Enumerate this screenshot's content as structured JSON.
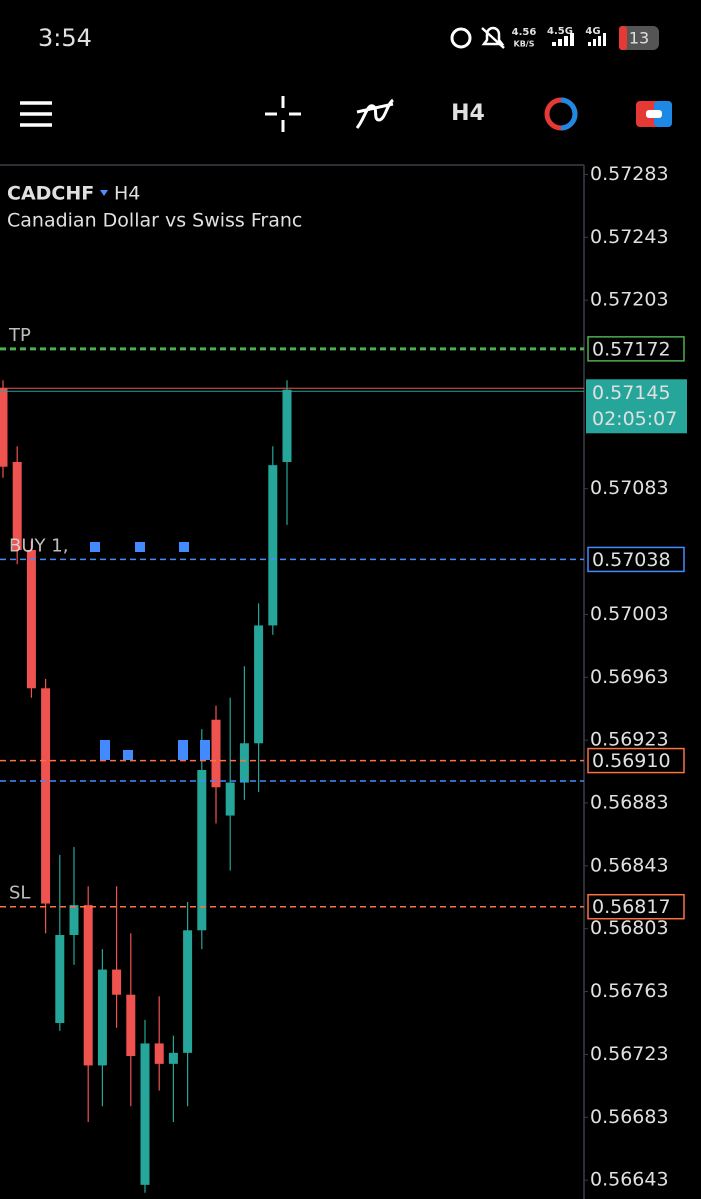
{
  "status_bar": {
    "time": "3:54",
    "speed": "4.56",
    "speed_unit": "KB/S",
    "network_1": "4.5G",
    "network_2": "4G",
    "battery": "13"
  },
  "toolbar": {
    "timeframe": "H4"
  },
  "chart_data": {
    "type": "candlestick",
    "symbol": "CADCHF",
    "timeframe": "H4",
    "description": "Canadian Dollar vs Swiss Franc",
    "up_color": "#26a69a",
    "down_color": "#ef5350",
    "open": [
      0.57147,
      0.571,
      0.57044,
      0.56956,
      0.56743,
      0.56799,
      0.56818,
      0.56716,
      0.56777,
      0.56761,
      0.5664,
      0.5673,
      0.56717,
      0.56724,
      0.56802,
      0.56936,
      0.56875,
      0.56896,
      0.56921,
      0.56996,
      0.571
    ],
    "high": [
      0.57152,
      0.5711,
      0.5705,
      0.56962,
      0.5685,
      0.56855,
      0.5683,
      0.5679,
      0.5683,
      0.568,
      0.56745,
      0.5676,
      0.56735,
      0.5682,
      0.5693,
      0.56945,
      0.5695,
      0.5697,
      0.5701,
      0.5711,
      0.57152
    ],
    "low": [
      0.5709,
      0.57035,
      0.5695,
      0.568,
      0.56738,
      0.5678,
      0.5668,
      0.5669,
      0.5674,
      0.5669,
      0.56635,
      0.567,
      0.5668,
      0.5669,
      0.5679,
      0.5687,
      0.5684,
      0.56885,
      0.5689,
      0.5699,
      0.5706
    ],
    "close": [
      0.57097,
      0.57044,
      0.56956,
      0.56819,
      0.56799,
      0.56818,
      0.56716,
      0.56777,
      0.56761,
      0.56722,
      0.5673,
      0.56717,
      0.56724,
      0.56802,
      0.56904,
      0.56893,
      0.56896,
      0.56921,
      0.56996,
      0.57098,
      0.57146
    ],
    "ylim": [
      0.56631,
      0.57289
    ],
    "yticks": [
      0.57283,
      0.57243,
      0.57203,
      0.57083,
      0.57003,
      0.56963,
      0.56923,
      0.56883,
      0.56843,
      0.56803,
      0.56763,
      0.56723,
      0.56683,
      0.56643
    ],
    "levels": [
      {
        "name": "TP",
        "value": 0.57172,
        "value_label": "0.57172",
        "color": "#4caf50"
      },
      {
        "name": "BUY 1,",
        "value": 0.57038,
        "value_label": "0.57038",
        "color": "#448aff"
      },
      {
        "value": 0.5691,
        "value_label": "0.56910",
        "color": "#ff7043"
      },
      {
        "value": 0.56897,
        "color": "#448aff"
      },
      {
        "name": "SL",
        "value": 0.56817,
        "value_label": "0.56817",
        "color": "#ff7043"
      }
    ],
    "current_price": 0.57145,
    "current_label": "0.57145",
    "countdown": "02:05:07"
  }
}
